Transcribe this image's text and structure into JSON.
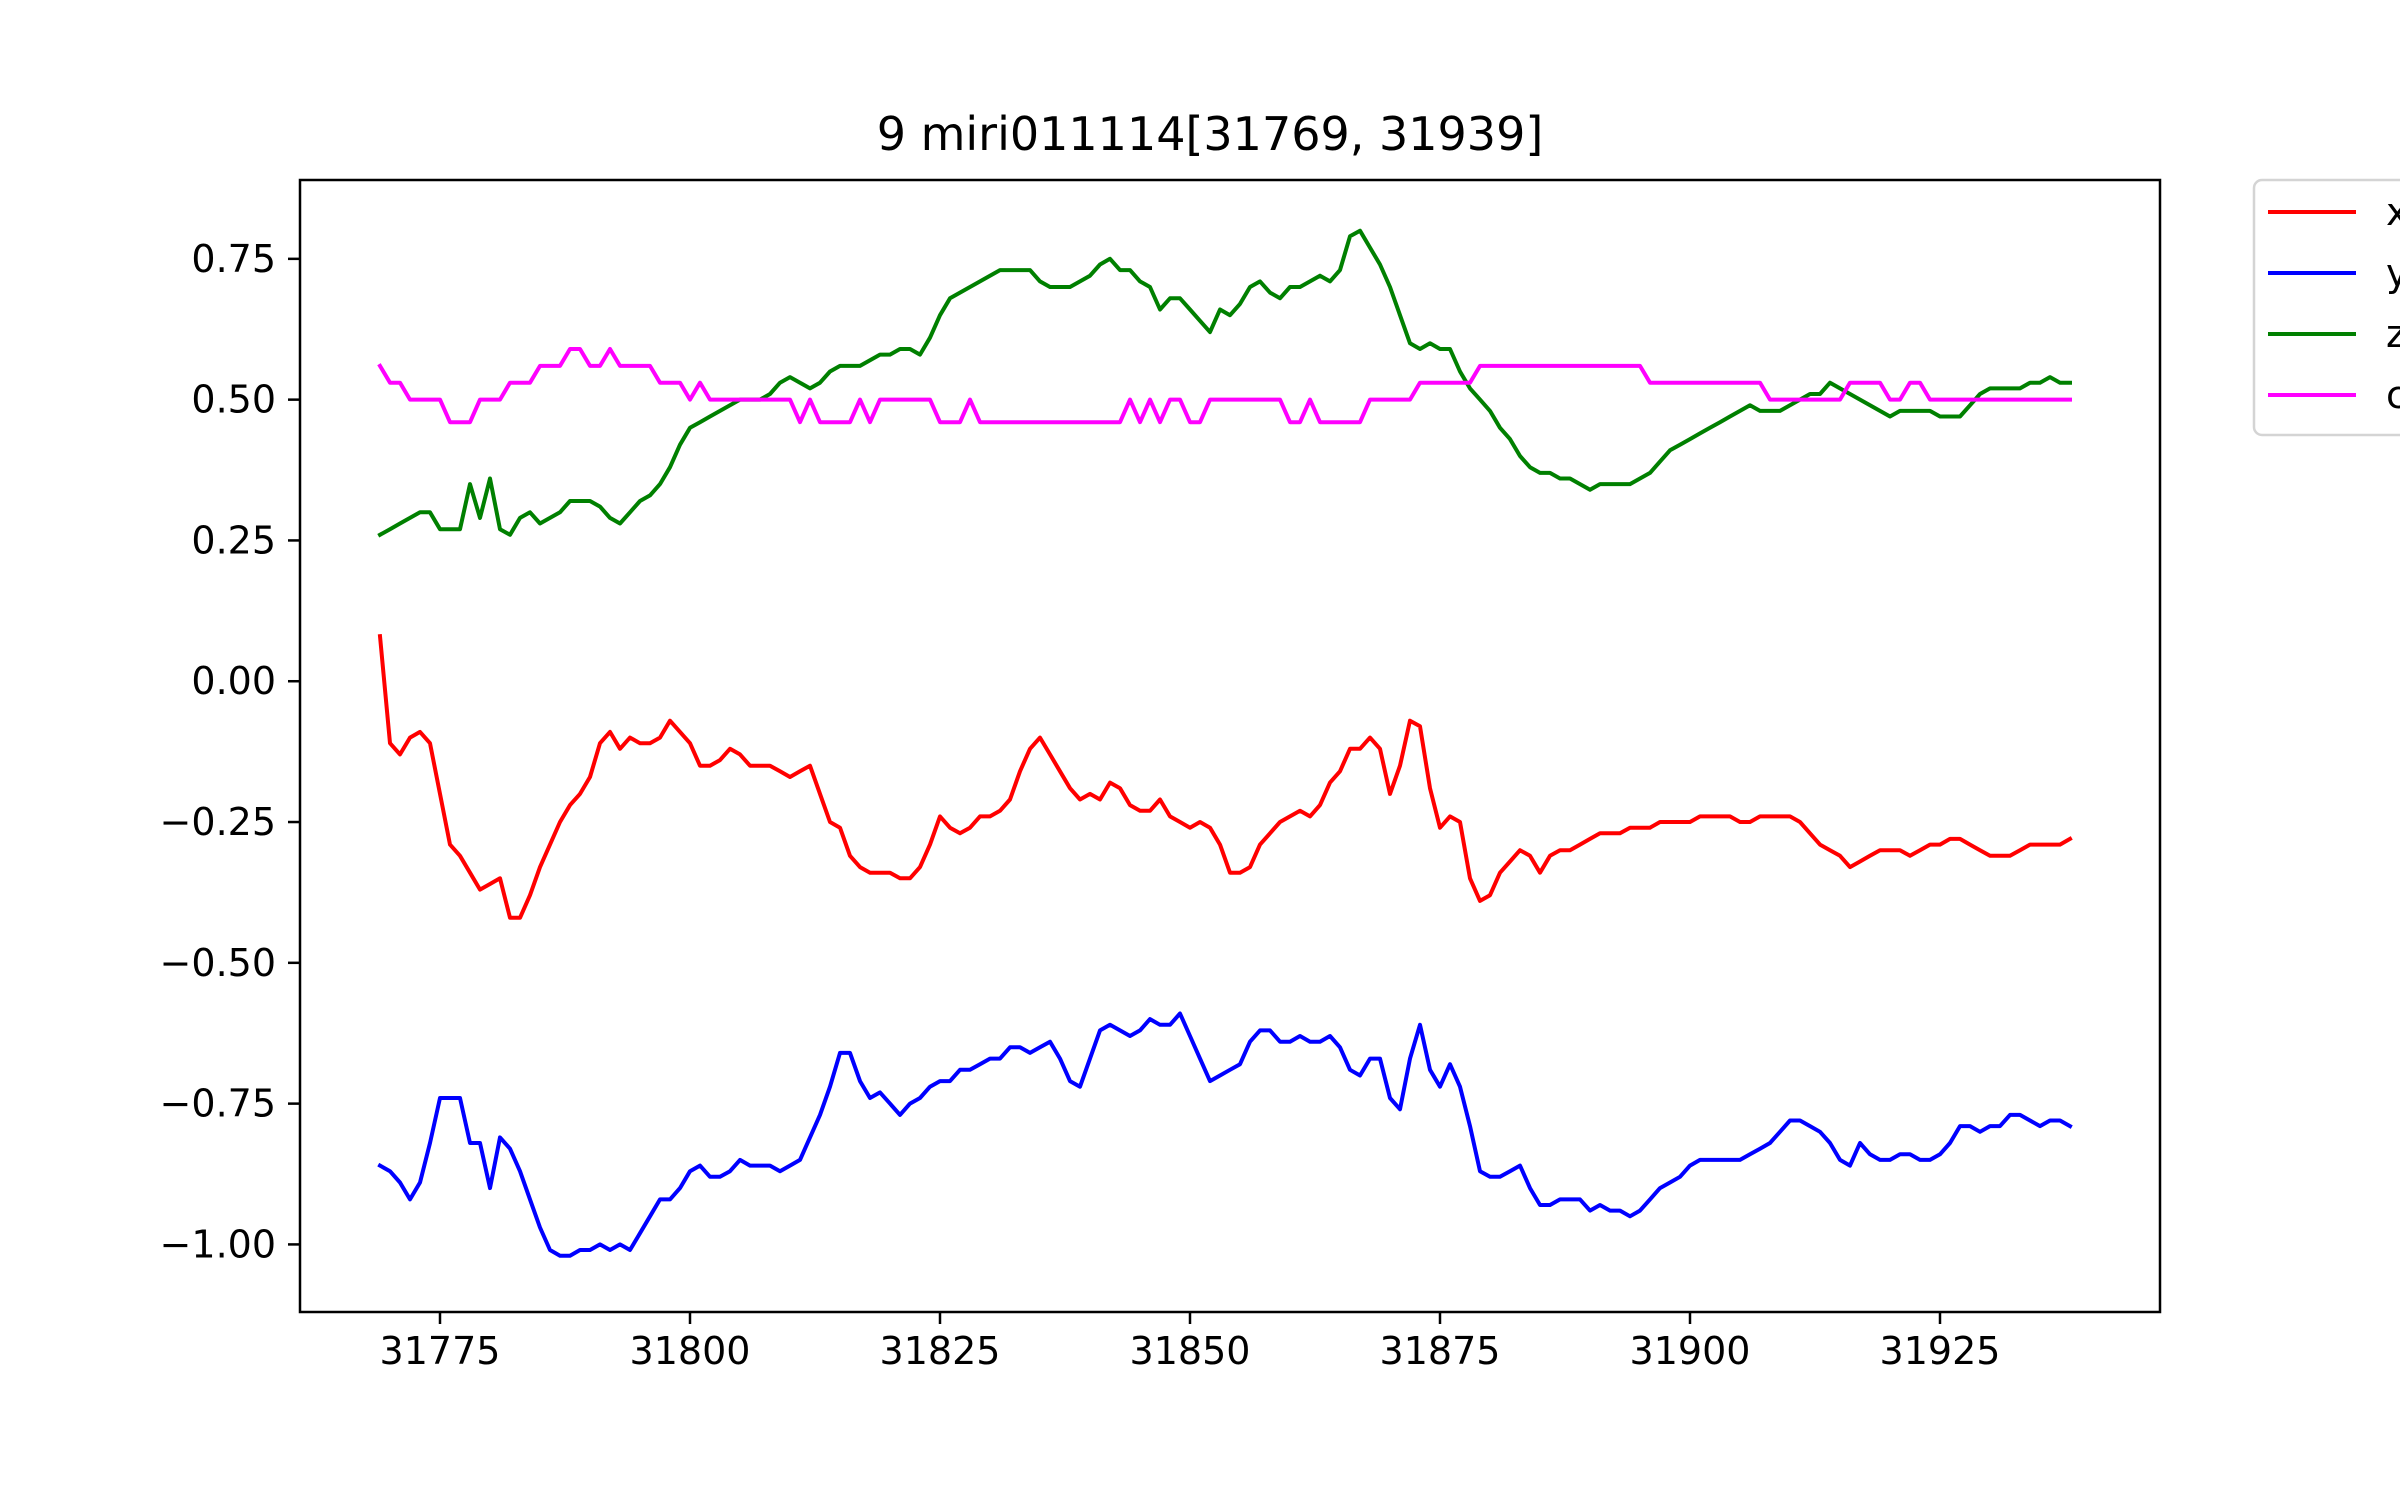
{
  "chart_data": {
    "type": "line",
    "title": "9 miri011114[31769, 31939]",
    "xlabel": "",
    "ylabel": "",
    "xlim": [
      31761,
      31947
    ],
    "ylim": [
      -1.12,
      0.89
    ],
    "xticks": [
      31775,
      31800,
      31825,
      31850,
      31875,
      31900,
      31925
    ],
    "xtick_labels": [
      "31775",
      "31800",
      "31825",
      "31850",
      "31875",
      "31900",
      "31925"
    ],
    "yticks": [
      0.75,
      0.5,
      0.25,
      0.0,
      -0.25,
      -0.5,
      -0.75,
      -1.0
    ],
    "ytick_labels": [
      "0.75",
      "0.50",
      "0.25",
      "0.00",
      "−0.25",
      "−0.50",
      "−0.75",
      "−1.00"
    ],
    "grid": false,
    "legend_position": "outside-top-right",
    "x": [
      31769,
      31770,
      31771,
      31772,
      31773,
      31774,
      31775,
      31776,
      31777,
      31778,
      31779,
      31780,
      31781,
      31782,
      31783,
      31784,
      31785,
      31786,
      31787,
      31788,
      31789,
      31790,
      31791,
      31792,
      31793,
      31794,
      31795,
      31796,
      31797,
      31798,
      31799,
      31800,
      31801,
      31802,
      31803,
      31804,
      31805,
      31806,
      31807,
      31808,
      31809,
      31810,
      31811,
      31812,
      31813,
      31814,
      31815,
      31816,
      31817,
      31818,
      31819,
      31820,
      31821,
      31822,
      31823,
      31824,
      31825,
      31826,
      31827,
      31828,
      31829,
      31830,
      31831,
      31832,
      31833,
      31834,
      31835,
      31836,
      31837,
      31838,
      31839,
      31840,
      31841,
      31842,
      31843,
      31844,
      31845,
      31846,
      31847,
      31848,
      31849,
      31850,
      31851,
      31852,
      31853,
      31854,
      31855,
      31856,
      31857,
      31858,
      31859,
      31860,
      31861,
      31862,
      31863,
      31864,
      31865,
      31866,
      31867,
      31868,
      31869,
      31870,
      31871,
      31872,
      31873,
      31874,
      31875,
      31876,
      31877,
      31878,
      31879,
      31880,
      31881,
      31882,
      31883,
      31884,
      31885,
      31886,
      31887,
      31888,
      31889,
      31890,
      31891,
      31892,
      31893,
      31894,
      31895,
      31896,
      31897,
      31898,
      31899,
      31900,
      31901,
      31902,
      31903,
      31904,
      31905,
      31906,
      31907,
      31908,
      31909,
      31910,
      31911,
      31912,
      31913,
      31914,
      31915,
      31916,
      31917,
      31918,
      31919,
      31920,
      31921,
      31922,
      31923,
      31924,
      31925,
      31926,
      31927,
      31928,
      31929,
      31930,
      31931,
      31932,
      31933,
      31934,
      31935,
      31936,
      31937,
      31938
    ],
    "series": [
      {
        "name": "x",
        "color": "#ff0000",
        "values": [
          0.08,
          -0.11,
          -0.13,
          -0.1,
          -0.09,
          -0.11,
          -0.2,
          -0.29,
          -0.31,
          -0.34,
          -0.37,
          -0.36,
          -0.35,
          -0.42,
          -0.42,
          -0.38,
          -0.33,
          -0.29,
          -0.25,
          -0.22,
          -0.2,
          -0.17,
          -0.11,
          -0.09,
          -0.12,
          -0.1,
          -0.11,
          -0.11,
          -0.1,
          -0.07,
          -0.09,
          -0.11,
          -0.15,
          -0.15,
          -0.14,
          -0.12,
          -0.13,
          -0.15,
          -0.15,
          -0.15,
          -0.16,
          -0.17,
          -0.16,
          -0.15,
          -0.2,
          -0.25,
          -0.26,
          -0.31,
          -0.33,
          -0.34,
          -0.34,
          -0.34,
          -0.35,
          -0.35,
          -0.33,
          -0.29,
          -0.24,
          -0.26,
          -0.27,
          -0.26,
          -0.24,
          -0.24,
          -0.23,
          -0.21,
          -0.16,
          -0.12,
          -0.1,
          -0.13,
          -0.16,
          -0.19,
          -0.21,
          -0.2,
          -0.21,
          -0.18,
          -0.19,
          -0.22,
          -0.23,
          -0.23,
          -0.21,
          -0.24,
          -0.25,
          -0.26,
          -0.25,
          -0.26,
          -0.29,
          -0.34,
          -0.34,
          -0.33,
          -0.29,
          -0.27,
          -0.25,
          -0.24,
          -0.23,
          -0.24,
          -0.22,
          -0.18,
          -0.16,
          -0.12,
          -0.12,
          -0.1,
          -0.12,
          -0.2,
          -0.15,
          -0.07,
          -0.08,
          -0.19,
          -0.26,
          -0.24,
          -0.25,
          -0.35,
          -0.39,
          -0.38,
          -0.34,
          -0.32,
          -0.3,
          -0.31,
          -0.34,
          -0.31,
          -0.3,
          -0.3,
          -0.29,
          -0.28,
          -0.27,
          -0.27,
          -0.27,
          -0.26,
          -0.26,
          -0.26,
          -0.25,
          -0.25,
          -0.25,
          -0.25,
          -0.24,
          -0.24,
          -0.24,
          -0.24,
          -0.25,
          -0.25,
          -0.24,
          -0.24,
          -0.24,
          -0.24,
          -0.25,
          -0.27,
          -0.29,
          -0.3,
          -0.31,
          -0.33,
          -0.32,
          -0.31,
          -0.3,
          -0.3,
          -0.3,
          -0.31,
          -0.3,
          -0.29,
          -0.29,
          -0.28,
          -0.28,
          -0.29,
          -0.3,
          -0.31,
          -0.31,
          -0.31,
          -0.3,
          -0.29,
          -0.29,
          -0.29,
          -0.29,
          -0.28
        ]
      },
      {
        "name": "y",
        "color": "#0000ff",
        "values": [
          -0.86,
          -0.87,
          -0.89,
          -0.92,
          -0.89,
          -0.82,
          -0.74,
          -0.74,
          -0.74,
          -0.82,
          -0.82,
          -0.9,
          -0.81,
          -0.83,
          -0.87,
          -0.92,
          -0.97,
          -1.01,
          -1.02,
          -1.02,
          -1.01,
          -1.01,
          -1.0,
          -1.01,
          -1.0,
          -1.01,
          -0.98,
          -0.95,
          -0.92,
          -0.92,
          -0.9,
          -0.87,
          -0.86,
          -0.88,
          -0.88,
          -0.87,
          -0.85,
          -0.86,
          -0.86,
          -0.86,
          -0.87,
          -0.86,
          -0.85,
          -0.81,
          -0.77,
          -0.72,
          -0.66,
          -0.66,
          -0.71,
          -0.74,
          -0.73,
          -0.75,
          -0.77,
          -0.75,
          -0.74,
          -0.72,
          -0.71,
          -0.71,
          -0.69,
          -0.69,
          -0.68,
          -0.67,
          -0.67,
          -0.65,
          -0.65,
          -0.66,
          -0.65,
          -0.64,
          -0.67,
          -0.71,
          -0.72,
          -0.67,
          -0.62,
          -0.61,
          -0.62,
          -0.63,
          -0.62,
          -0.6,
          -0.61,
          -0.61,
          -0.59,
          -0.63,
          -0.67,
          -0.71,
          -0.7,
          -0.69,
          -0.68,
          -0.64,
          -0.62,
          -0.62,
          -0.64,
          -0.64,
          -0.63,
          -0.64,
          -0.64,
          -0.63,
          -0.65,
          -0.69,
          -0.7,
          -0.67,
          -0.67,
          -0.74,
          -0.76,
          -0.67,
          -0.61,
          -0.69,
          -0.72,
          -0.68,
          -0.72,
          -0.79,
          -0.87,
          -0.88,
          -0.88,
          -0.87,
          -0.86,
          -0.9,
          -0.93,
          -0.93,
          -0.92,
          -0.92,
          -0.92,
          -0.94,
          -0.93,
          -0.94,
          -0.94,
          -0.95,
          -0.94,
          -0.92,
          -0.9,
          -0.89,
          -0.88,
          -0.86,
          -0.85,
          -0.85,
          -0.85,
          -0.85,
          -0.85,
          -0.84,
          -0.83,
          -0.82,
          -0.8,
          -0.78,
          -0.78,
          -0.79,
          -0.8,
          -0.82,
          -0.85,
          -0.86,
          -0.82,
          -0.84,
          -0.85,
          -0.85,
          -0.84,
          -0.84,
          -0.85,
          -0.85,
          -0.84,
          -0.82,
          -0.79,
          -0.79,
          -0.8,
          -0.79,
          -0.79,
          -0.77,
          -0.77,
          -0.78,
          -0.79,
          -0.78,
          -0.78,
          -0.79
        ]
      },
      {
        "name": "z",
        "color": "#008000",
        "values": [
          0.26,
          0.27,
          0.28,
          0.29,
          0.3,
          0.3,
          0.27,
          0.27,
          0.27,
          0.35,
          0.29,
          0.36,
          0.27,
          0.26,
          0.29,
          0.3,
          0.28,
          0.29,
          0.3,
          0.32,
          0.32,
          0.32,
          0.31,
          0.29,
          0.28,
          0.3,
          0.32,
          0.33,
          0.35,
          0.38,
          0.42,
          0.45,
          0.46,
          0.47,
          0.48,
          0.49,
          0.5,
          0.5,
          0.5,
          0.51,
          0.53,
          0.54,
          0.53,
          0.52,
          0.53,
          0.55,
          0.56,
          0.56,
          0.56,
          0.57,
          0.58,
          0.58,
          0.59,
          0.59,
          0.58,
          0.61,
          0.65,
          0.68,
          0.69,
          0.7,
          0.71,
          0.72,
          0.73,
          0.73,
          0.73,
          0.73,
          0.71,
          0.7,
          0.7,
          0.7,
          0.71,
          0.72,
          0.74,
          0.75,
          0.73,
          0.73,
          0.71,
          0.7,
          0.66,
          0.68,
          0.68,
          0.66,
          0.64,
          0.62,
          0.66,
          0.65,
          0.67,
          0.7,
          0.71,
          0.69,
          0.68,
          0.7,
          0.7,
          0.71,
          0.72,
          0.71,
          0.73,
          0.79,
          0.8,
          0.77,
          0.74,
          0.7,
          0.65,
          0.6,
          0.59,
          0.6,
          0.59,
          0.59,
          0.55,
          0.52,
          0.5,
          0.48,
          0.45,
          0.43,
          0.4,
          0.38,
          0.37,
          0.37,
          0.36,
          0.36,
          0.35,
          0.34,
          0.35,
          0.35,
          0.35,
          0.35,
          0.36,
          0.37,
          0.39,
          0.41,
          0.42,
          0.43,
          0.44,
          0.45,
          0.46,
          0.47,
          0.48,
          0.49,
          0.48,
          0.48,
          0.48,
          0.49,
          0.5,
          0.51,
          0.51,
          0.53,
          0.52,
          0.51,
          0.5,
          0.49,
          0.48,
          0.47,
          0.48,
          0.48,
          0.48,
          0.48,
          0.47,
          0.47,
          0.47,
          0.49,
          0.51,
          0.52,
          0.52,
          0.52,
          0.52,
          0.53,
          0.53,
          0.54,
          0.53,
          0.53
        ]
      },
      {
        "name": "c",
        "color": "#ff00ff",
        "values": [
          0.56,
          0.53,
          0.53,
          0.5,
          0.5,
          0.5,
          0.5,
          0.46,
          0.46,
          0.46,
          0.5,
          0.5,
          0.5,
          0.53,
          0.53,
          0.53,
          0.56,
          0.56,
          0.56,
          0.59,
          0.59,
          0.56,
          0.56,
          0.59,
          0.56,
          0.56,
          0.56,
          0.56,
          0.53,
          0.53,
          0.53,
          0.5,
          0.53,
          0.5,
          0.5,
          0.5,
          0.5,
          0.5,
          0.5,
          0.5,
          0.5,
          0.5,
          0.46,
          0.5,
          0.46,
          0.46,
          0.46,
          0.46,
          0.5,
          0.46,
          0.5,
          0.5,
          0.5,
          0.5,
          0.5,
          0.5,
          0.46,
          0.46,
          0.46,
          0.5,
          0.46,
          0.46,
          0.46,
          0.46,
          0.46,
          0.46,
          0.46,
          0.46,
          0.46,
          0.46,
          0.46,
          0.46,
          0.46,
          0.46,
          0.46,
          0.5,
          0.46,
          0.5,
          0.46,
          0.5,
          0.5,
          0.46,
          0.46,
          0.5,
          0.5,
          0.5,
          0.5,
          0.5,
          0.5,
          0.5,
          0.5,
          0.46,
          0.46,
          0.5,
          0.46,
          0.46,
          0.46,
          0.46,
          0.46,
          0.5,
          0.5,
          0.5,
          0.5,
          0.5,
          0.53,
          0.53,
          0.53,
          0.53,
          0.53,
          0.53,
          0.56,
          0.56,
          0.56,
          0.56,
          0.56,
          0.56,
          0.56,
          0.56,
          0.56,
          0.56,
          0.56,
          0.56,
          0.56,
          0.56,
          0.56,
          0.56,
          0.56,
          0.53,
          0.53,
          0.53,
          0.53,
          0.53,
          0.53,
          0.53,
          0.53,
          0.53,
          0.53,
          0.53,
          0.53,
          0.5,
          0.5,
          0.5,
          0.5,
          0.5,
          0.5,
          0.5,
          0.5,
          0.53,
          0.53,
          0.53,
          0.53,
          0.5,
          0.5,
          0.53,
          0.53,
          0.5,
          0.5,
          0.5,
          0.5,
          0.5,
          0.5,
          0.5,
          0.5,
          0.5,
          0.5,
          0.5,
          0.5,
          0.5,
          0.5,
          0.5
        ]
      }
    ]
  }
}
